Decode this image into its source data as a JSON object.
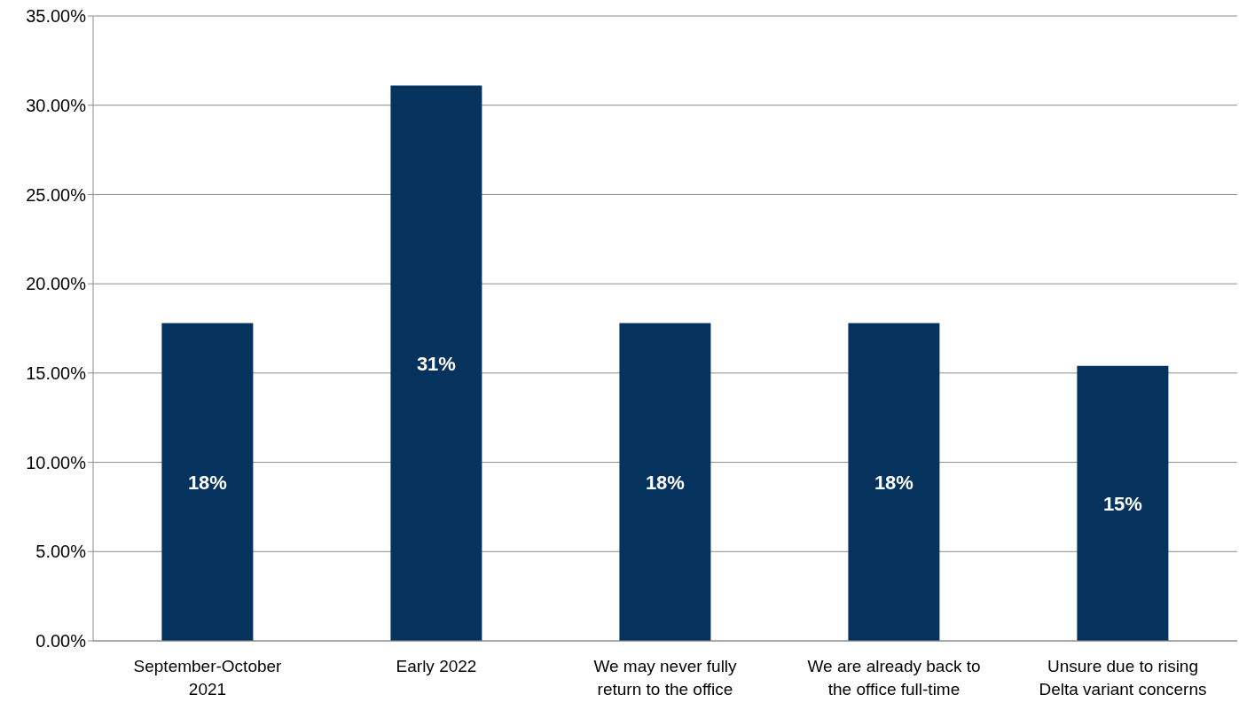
{
  "chart_data": {
    "type": "bar",
    "categories": [
      "September-October 2021",
      "Early 2022",
      "We may never fully return to the office",
      "We are already back to the office full-time",
      "Unsure due to rising Delta variant concerns"
    ],
    "values": [
      17.8,
      31.1,
      17.8,
      17.8,
      15.4
    ],
    "value_labels": [
      "18%",
      "31%",
      "18%",
      "18%",
      "15%"
    ],
    "color": "#06325e",
    "ylim": [
      0,
      35
    ],
    "yticks": [
      {
        "value": 0,
        "label": "0.00%"
      },
      {
        "value": 5,
        "label": "5.00%"
      },
      {
        "value": 10,
        "label": "10.00%"
      },
      {
        "value": 15,
        "label": "15.00%"
      },
      {
        "value": 20,
        "label": "20.00%"
      },
      {
        "value": 25,
        "label": "25.00%"
      },
      {
        "value": 30,
        "label": "30.00%"
      },
      {
        "value": 35,
        "label": "35.00%"
      }
    ],
    "grid": "y",
    "legend": false
  }
}
